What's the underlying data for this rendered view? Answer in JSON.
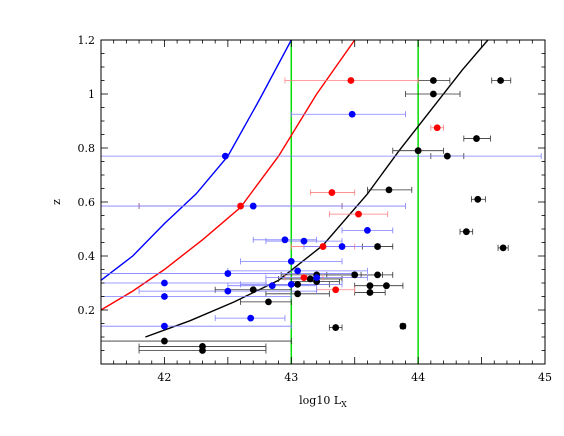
{
  "chart_data": {
    "type": "scatter",
    "title": "",
    "xlabel": "log10 L",
    "xlabel_sub": "X",
    "ylabel": "z",
    "xlim": [
      41.5,
      45
    ],
    "ylim": [
      0,
      1.2
    ],
    "xticks": [
      42,
      43,
      44,
      45
    ],
    "xtick_labels": [
      "42",
      "43",
      "44",
      "45"
    ],
    "yticks": [
      0.2,
      0.4,
      0.6,
      0.8,
      1.0,
      1.2
    ],
    "ytick_labels": [
      "0.2",
      "0.4",
      "0.6",
      "0.8",
      "1",
      "1.2"
    ],
    "grid": false,
    "legend": "none",
    "colors": {
      "black": "#000000",
      "red": "#ff0000",
      "blue": "#0000ff",
      "green": "#00e000",
      "black_err": "#333333",
      "red_err": "#ff7f7f",
      "blue_err": "#7f7fff",
      "purple_err": "#7f3f7f"
    },
    "vlines": [
      {
        "x": 43.0,
        "color": "green"
      },
      {
        "x": 44.0,
        "color": "green"
      }
    ],
    "curves": [
      {
        "color": "blue",
        "x": [
          41.5,
          41.75,
          42.0,
          42.25,
          42.5,
          42.75,
          43.0
        ],
        "y": [
          0.31,
          0.4,
          0.52,
          0.63,
          0.77,
          0.98,
          1.2
        ]
      },
      {
        "color": "red",
        "x": [
          41.5,
          41.75,
          42.0,
          42.3,
          42.6,
          42.9,
          43.2,
          43.5
        ],
        "y": [
          0.2,
          0.27,
          0.35,
          0.46,
          0.58,
          0.77,
          1.0,
          1.2
        ]
      },
      {
        "color": "black",
        "x": [
          41.85,
          42.2,
          42.55,
          42.9,
          43.25,
          43.6,
          43.85,
          44.1,
          44.35,
          44.55
        ],
        "y": [
          0.1,
          0.16,
          0.23,
          0.31,
          0.44,
          0.63,
          0.79,
          0.94,
          1.09,
          1.2
        ]
      }
    ],
    "series": [
      {
        "color": "black",
        "points": [
          {
            "x": 44.12,
            "y": 1.05,
            "xlo": 44.0,
            "xhi": 44.25
          },
          {
            "x": 44.65,
            "y": 1.05,
            "xlo": 44.58,
            "xhi": 44.73
          },
          {
            "x": 44.12,
            "y": 1.0,
            "xlo": 43.9,
            "xhi": 44.33
          },
          {
            "x": 44.46,
            "y": 0.835,
            "xlo": 44.36,
            "xhi": 44.57
          },
          {
            "x": 44.0,
            "y": 0.79,
            "xlo": 43.8,
            "xhi": 44.2
          },
          {
            "x": 44.23,
            "y": 0.77,
            "xlo": 44.1,
            "xhi": 44.36
          },
          {
            "x": 43.77,
            "y": 0.645,
            "xlo": 43.6,
            "xhi": 43.95
          },
          {
            "x": 44.47,
            "y": 0.61,
            "xlo": 44.42,
            "xhi": 44.53
          },
          {
            "x": 44.38,
            "y": 0.49,
            "xlo": 44.33,
            "xhi": 44.43
          },
          {
            "x": 44.67,
            "y": 0.43,
            "xlo": 44.63,
            "xhi": 44.71
          },
          {
            "x": 43.68,
            "y": 0.435,
            "xlo": 43.56,
            "xhi": 43.8
          },
          {
            "x": 43.5,
            "y": 0.33,
            "xlo": 43.28,
            "xhi": 43.72
          },
          {
            "x": 43.68,
            "y": 0.33,
            "xlo": 43.55,
            "xhi": 43.8
          },
          {
            "x": 43.2,
            "y": 0.33,
            "xlo": 42.92,
            "xhi": 43.48
          },
          {
            "x": 43.15,
            "y": 0.315,
            "xlo": 42.9,
            "xhi": 43.4
          },
          {
            "x": 43.2,
            "y": 0.305,
            "xlo": 43.0,
            "xhi": 43.38
          },
          {
            "x": 43.62,
            "y": 0.29,
            "xlo": 43.5,
            "xhi": 43.74
          },
          {
            "x": 43.75,
            "y": 0.29,
            "xlo": 43.62,
            "xhi": 43.88
          },
          {
            "x": 43.05,
            "y": 0.295,
            "xlo": 42.8,
            "xhi": 43.3
          },
          {
            "x": 42.7,
            "y": 0.275,
            "xlo": 42.4,
            "xhi": 43.0
          },
          {
            "x": 43.05,
            "y": 0.26,
            "xlo": 42.8,
            "xhi": 43.3
          },
          {
            "x": 43.62,
            "y": 0.265,
            "xlo": 43.5,
            "xhi": 43.74
          },
          {
            "x": 42.82,
            "y": 0.23,
            "xlo": 42.6,
            "xhi": 43.0
          },
          {
            "x": 43.35,
            "y": 0.135,
            "xlo": 43.3,
            "xhi": 43.4
          },
          {
            "x": 43.88,
            "y": 0.14,
            "xlo": 43.86,
            "xhi": 43.9
          },
          {
            "x": 42.0,
            "y": 0.085,
            "xlo": 41.5,
            "xhi": 43.0
          },
          {
            "x": 42.3,
            "y": 0.065,
            "xlo": 41.8,
            "xhi": 42.8
          },
          {
            "x": 42.3,
            "y": 0.05,
            "xlo": 41.8,
            "xhi": 42.8
          }
        ]
      },
      {
        "color": "red",
        "points": [
          {
            "x": 43.47,
            "y": 1.05,
            "xlo": 42.95,
            "xhi": 44.0
          },
          {
            "x": 44.15,
            "y": 0.875,
            "xlo": 44.1,
            "xhi": 44.2
          },
          {
            "x": 43.32,
            "y": 0.635,
            "xlo": 43.15,
            "xhi": 43.5
          },
          {
            "x": 42.6,
            "y": 0.585,
            "xlo": 41.8,
            "xhi": 43.4
          },
          {
            "x": 43.53,
            "y": 0.555,
            "xlo": 43.3,
            "xhi": 43.76
          },
          {
            "x": 43.25,
            "y": 0.435,
            "xlo": 43.0,
            "xhi": 43.5
          },
          {
            "x": 43.1,
            "y": 0.32,
            "xlo": 42.95,
            "xhi": 43.25
          },
          {
            "x": 43.35,
            "y": 0.275,
            "xlo": 43.2,
            "xhi": 43.5
          }
        ]
      },
      {
        "color": "blue",
        "points": [
          {
            "x": 43.48,
            "y": 0.925,
            "xlo": 43.0,
            "xhi": 43.9
          },
          {
            "x": 42.48,
            "y": 0.77,
            "xlo": 41.5,
            "xhi": 44.97
          },
          {
            "x": 42.7,
            "y": 0.585,
            "xlo": 41.5,
            "xhi": 43.9
          },
          {
            "x": 43.6,
            "y": 0.495,
            "xlo": 43.4,
            "xhi": 43.8
          },
          {
            "x": 42.95,
            "y": 0.46,
            "xlo": 42.7,
            "xhi": 43.2
          },
          {
            "x": 43.1,
            "y": 0.455,
            "xlo": 42.8,
            "xhi": 43.4
          },
          {
            "x": 43.4,
            "y": 0.435,
            "xlo": 43.1,
            "xhi": 43.7
          },
          {
            "x": 43.0,
            "y": 0.38,
            "xlo": 42.6,
            "xhi": 43.4
          },
          {
            "x": 42.5,
            "y": 0.335,
            "xlo": 41.5,
            "xhi": 43.5
          },
          {
            "x": 43.05,
            "y": 0.345,
            "xlo": 42.5,
            "xhi": 43.6
          },
          {
            "x": 43.2,
            "y": 0.32,
            "xlo": 42.8,
            "xhi": 43.6
          },
          {
            "x": 42.0,
            "y": 0.3,
            "xlo": 41.5,
            "xhi": 42.8
          },
          {
            "x": 42.85,
            "y": 0.29,
            "xlo": 42.5,
            "xhi": 43.2
          },
          {
            "x": 43.0,
            "y": 0.295,
            "xlo": 42.6,
            "xhi": 43.4
          },
          {
            "x": 42.5,
            "y": 0.27,
            "xlo": 41.8,
            "xhi": 43.2
          },
          {
            "x": 42.0,
            "y": 0.25,
            "xlo": 41.5,
            "xhi": 43.0
          },
          {
            "x": 42.68,
            "y": 0.17,
            "xlo": 42.4,
            "xhi": 42.95
          },
          {
            "x": 42.0,
            "y": 0.14,
            "xlo": 41.5,
            "xhi": 43.0
          }
        ]
      }
    ]
  }
}
